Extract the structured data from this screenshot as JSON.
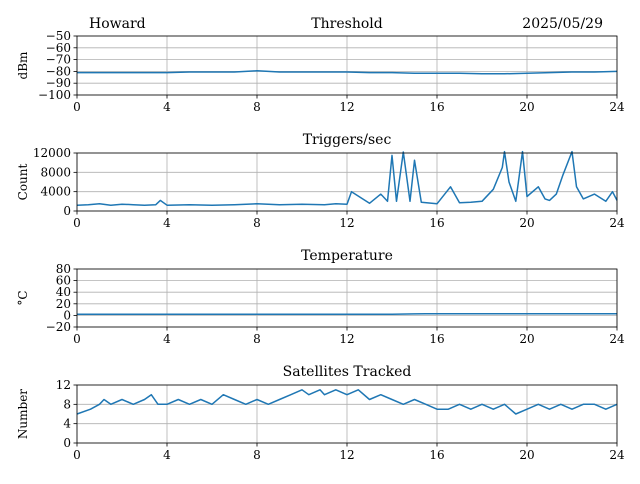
{
  "header": {
    "station": "Howard",
    "date": "2025/05/29"
  },
  "colors": {
    "series": "#1f77b4",
    "grid": "#b0b0b0",
    "axes": "#000000"
  },
  "chart_data": [
    {
      "type": "line",
      "title": "Threshold",
      "xlabel": "",
      "ylabel": "dBm",
      "xlim": [
        0,
        24
      ],
      "ylim": [
        -100,
        -50
      ],
      "xticks": [
        0,
        4,
        8,
        12,
        16,
        20,
        24
      ],
      "yticks": [
        -100,
        -90,
        -80,
        -70,
        -60,
        -50
      ],
      "ytick_labels": [
        "−100",
        "−90",
        "−80",
        "−70",
        "−60",
        "−50"
      ],
      "grid": true,
      "series": [
        {
          "x": [
            0,
            1,
            2,
            3,
            4,
            5,
            6,
            7,
            7.5,
            8,
            8.5,
            9,
            10,
            11,
            12,
            13,
            14,
            15,
            16,
            17,
            18,
            19,
            20,
            21,
            22,
            23,
            24
          ],
          "values": [
            -81,
            -81,
            -81,
            -81,
            -81,
            -80.5,
            -80.5,
            -80.5,
            -80,
            -79.5,
            -80,
            -80.5,
            -80.5,
            -80.5,
            -80.5,
            -81,
            -81,
            -81.5,
            -81.5,
            -81.5,
            -82,
            -82,
            -81.5,
            -81,
            -80.5,
            -80.5,
            -80
          ]
        }
      ]
    },
    {
      "type": "line",
      "title": "Triggers/sec",
      "xlabel": "",
      "ylabel": "Count",
      "xlim": [
        0,
        24
      ],
      "ylim": [
        0,
        12000
      ],
      "xticks": [
        0,
        4,
        8,
        12,
        16,
        20,
        24
      ],
      "yticks": [
        0,
        4000,
        8000,
        12000
      ],
      "ytick_labels": [
        "0",
        "4000",
        "8000",
        "12000"
      ],
      "grid": true,
      "series": [
        {
          "x": [
            0,
            0.5,
            1,
            1.5,
            2,
            2.5,
            3,
            3.5,
            3.7,
            4,
            5,
            6,
            7,
            8,
            9,
            10,
            11,
            11.5,
            12,
            12.2,
            13,
            13.5,
            13.8,
            14,
            14.2,
            14.5,
            14.8,
            15,
            15.3,
            16,
            16.6,
            17,
            17.5,
            18,
            18.5,
            18.9,
            19,
            19.2,
            19.5,
            19.8,
            20,
            20.5,
            20.8,
            21,
            21.3,
            21.6,
            22,
            22.2,
            22.5,
            23,
            23.5,
            23.8,
            24
          ],
          "values": [
            1200,
            1300,
            1500,
            1200,
            1400,
            1300,
            1200,
            1300,
            2200,
            1200,
            1300,
            1200,
            1300,
            1500,
            1300,
            1400,
            1300,
            1500,
            1400,
            4000,
            1600,
            3500,
            2000,
            11500,
            2000,
            12200,
            2000,
            10500,
            1800,
            1500,
            5000,
            1700,
            1800,
            2000,
            4500,
            9000,
            12300,
            6000,
            2000,
            12300,
            3000,
            5000,
            2500,
            2200,
            3500,
            7500,
            12300,
            5000,
            2500,
            3500,
            2000,
            4000,
            2200
          ]
        }
      ]
    },
    {
      "type": "line",
      "title": "Temperature",
      "xlabel": "",
      "ylabel": "°C",
      "xlim": [
        0,
        24
      ],
      "ylim": [
        -20,
        80
      ],
      "xticks": [
        0,
        4,
        8,
        12,
        16,
        20,
        24
      ],
      "yticks": [
        -20,
        0,
        20,
        40,
        60,
        80
      ],
      "ytick_labels": [
        "−20",
        "0",
        "20",
        "40",
        "60",
        "80"
      ],
      "grid": true,
      "series": [
        {
          "x": [
            0,
            4,
            8,
            12,
            14,
            15,
            15.5,
            16,
            20,
            24
          ],
          "values": [
            2,
            2,
            2,
            2,
            2,
            2.5,
            3,
            3,
            3,
            3
          ]
        }
      ]
    },
    {
      "type": "line",
      "title": "Satellites Tracked",
      "xlabel": "",
      "ylabel": "Number",
      "xlim": [
        0,
        24
      ],
      "ylim": [
        0,
        12
      ],
      "xticks": [
        0,
        4,
        8,
        12,
        16,
        20,
        24
      ],
      "yticks": [
        0,
        4,
        8,
        12
      ],
      "ytick_labels": [
        "0",
        "4",
        "8",
        "12"
      ],
      "grid": true,
      "series": [
        {
          "x": [
            0,
            0.6,
            1,
            1.2,
            1.5,
            2,
            2.5,
            3,
            3.3,
            3.6,
            4,
            4.5,
            5,
            5.5,
            6,
            6.5,
            7,
            7.5,
            8,
            8.5,
            9,
            9.5,
            10,
            10.3,
            10.8,
            11,
            11.5,
            12,
            12.5,
            13,
            13.5,
            14,
            14.5,
            15,
            15.5,
            16,
            16.5,
            17,
            17.5,
            18,
            18.5,
            19,
            19.5,
            20,
            20.5,
            21,
            21.5,
            22,
            22.5,
            23,
            23.5,
            24
          ],
          "values": [
            6,
            7,
            8,
            9,
            8,
            9,
            8,
            9,
            10,
            8,
            8,
            9,
            8,
            9,
            8,
            10,
            9,
            8,
            9,
            8,
            9,
            10,
            11,
            10,
            11,
            10,
            11,
            10,
            11,
            9,
            10,
            9,
            8,
            9,
            8,
            7,
            7,
            8,
            7,
            8,
            7,
            8,
            6,
            7,
            8,
            7,
            8,
            7,
            8,
            8,
            7,
            8
          ]
        }
      ]
    }
  ]
}
